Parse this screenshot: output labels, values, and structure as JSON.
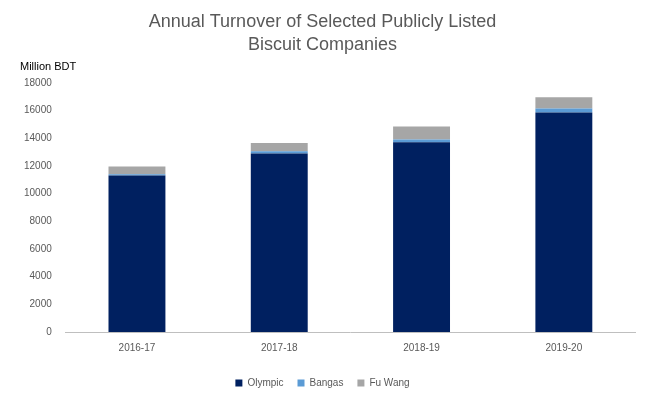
{
  "chart_data": {
    "type": "bar",
    "title": [
      "Annual Turnover of Selected Publicly Listed",
      "Biscuit Companies"
    ],
    "y_label": "Million BDT",
    "categories": [
      "2016-17",
      "2017-18",
      "2018-19",
      "2019-20"
    ],
    "series": [
      {
        "name": "Olympic",
        "color": "#002060",
        "values": [
          11300,
          12900,
          13700,
          15850
        ]
      },
      {
        "name": "Bangas",
        "color": "#5b9bd5",
        "values": [
          100,
          150,
          200,
          300
        ]
      },
      {
        "name": "Fu Wang",
        "color": "#a6a6a6",
        "values": [
          550,
          600,
          950,
          800
        ]
      }
    ],
    "stacked": true,
    "ylim": [
      0,
      18000
    ],
    "yticks": [
      0,
      2000,
      4000,
      6000,
      8000,
      10000,
      12000,
      14000,
      16000,
      18000
    ],
    "grid": false,
    "legend": "bottom"
  }
}
